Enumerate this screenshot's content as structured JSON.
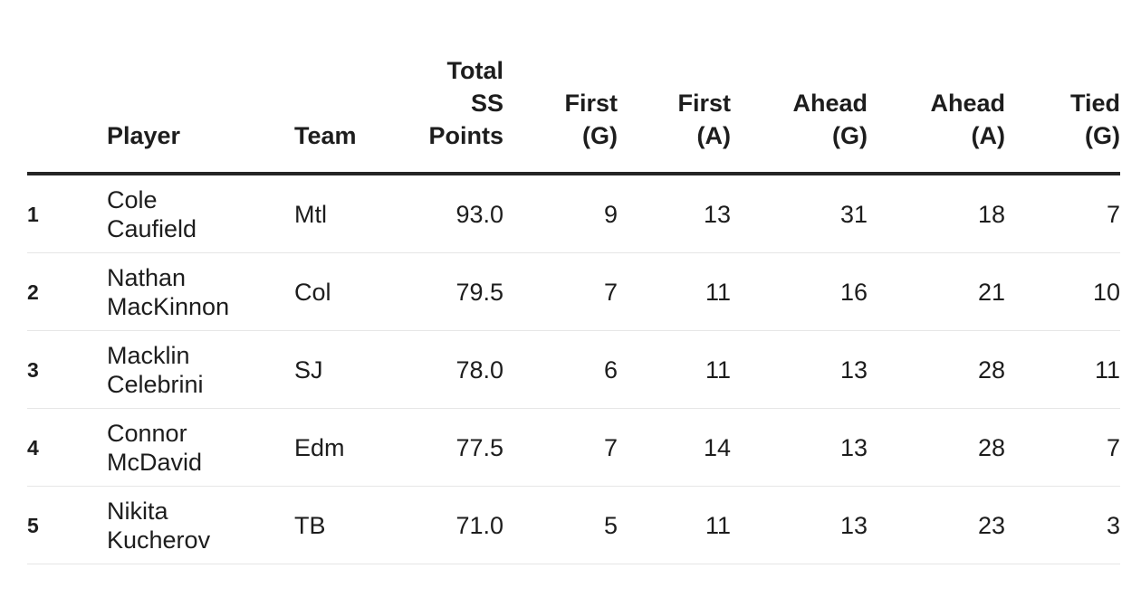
{
  "table": {
    "headers": {
      "rank": "",
      "player": "Player",
      "team": "Team",
      "total_ss_points": "Total\nSS\nPoints",
      "first_g": "First\n(G)",
      "first_a": "First\n(A)",
      "ahead_g": "Ahead\n(G)",
      "ahead_a": "Ahead\n(A)",
      "tied_g": "Tied\n(G)"
    },
    "rows": [
      {
        "rank": "1",
        "player": "Cole Caufield",
        "team": "Mtl",
        "total_ss_points": "93.0",
        "first_g": "9",
        "first_a": "13",
        "ahead_g": "31",
        "ahead_a": "18",
        "tied_g": "7"
      },
      {
        "rank": "2",
        "player": "Nathan MacKinnon",
        "team": "Col",
        "total_ss_points": "79.5",
        "first_g": "7",
        "first_a": "11",
        "ahead_g": "16",
        "ahead_a": "21",
        "tied_g": "10"
      },
      {
        "rank": "3",
        "player": "Macklin Celebrini",
        "team": "SJ",
        "total_ss_points": "78.0",
        "first_g": "6",
        "first_a": "11",
        "ahead_g": "13",
        "ahead_a": "28",
        "tied_g": "11"
      },
      {
        "rank": "4",
        "player": "Connor McDavid",
        "team": "Edm",
        "total_ss_points": "77.5",
        "first_g": "7",
        "first_a": "14",
        "ahead_g": "13",
        "ahead_a": "28",
        "tied_g": "7"
      },
      {
        "rank": "5",
        "player": "Nikita Kucherov",
        "team": "TB",
        "total_ss_points": "71.0",
        "first_g": "5",
        "first_a": "11",
        "ahead_g": "13",
        "ahead_a": "23",
        "tied_g": "3"
      }
    ],
    "colors": {
      "text": "#1d1d1d",
      "header_border": "#252525",
      "row_divider": "#e6e6e6",
      "background": "#ffffff"
    }
  }
}
